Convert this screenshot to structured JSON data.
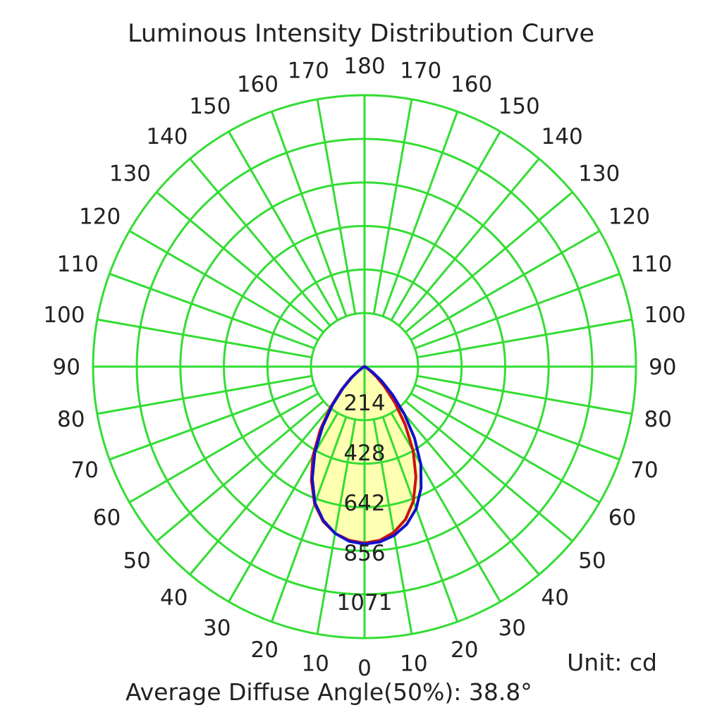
{
  "header": {
    "title": "Luminous Intensity Distribution Curve"
  },
  "footer": {
    "unit": "Unit: cd",
    "beam_angle": "Average Diffuse Angle(50%): 38.8°"
  },
  "colors": {
    "grid": "#33dd33",
    "series_c0": "#cc1111",
    "series_c90": "#1111cc",
    "fill": "#ffffa8"
  },
  "chart_data": {
    "type": "polar",
    "title": "Luminous Intensity Distribution Curve",
    "unit": "cd",
    "r_max": 1071,
    "radial_ticks": [
      "214",
      "428",
      "642",
      "856",
      "1071"
    ],
    "radial_values": [
      214,
      428,
      642,
      856,
      1071
    ],
    "angle_ticks_left": [
      "0",
      "10",
      "20",
      "30",
      "40",
      "50",
      "60",
      "70",
      "80",
      "90",
      "100",
      "110",
      "120",
      "130",
      "140",
      "150",
      "160",
      "170",
      "180"
    ],
    "angle_ticks_right": [
      "10",
      "20",
      "30",
      "40",
      "50",
      "60",
      "70",
      "80",
      "90",
      "100",
      "110",
      "120",
      "130",
      "140",
      "150",
      "160",
      "170"
    ],
    "angles_deg": [
      0,
      5,
      10,
      15,
      20,
      25,
      30,
      35,
      40,
      45,
      50,
      55,
      60,
      70,
      80,
      90
    ],
    "series": [
      {
        "color": "#cc1111",
        "values_left": [
          870,
          860,
          835,
          790,
          720,
          620,
          510,
          380,
          260,
          160,
          90,
          40,
          15,
          5,
          1,
          0
        ],
        "values_right": [
          870,
          860,
          830,
          780,
          705,
          600,
          480,
          350,
          235,
          140,
          75,
          30,
          10,
          3,
          1,
          0
        ]
      },
      {
        "color": "#1111cc",
        "values_left": [
          875,
          865,
          835,
          785,
          715,
          610,
          490,
          360,
          245,
          150,
          80,
          35,
          12,
          4,
          1,
          0
        ],
        "values_right": [
          875,
          868,
          845,
          805,
          745,
          660,
          555,
          430,
          305,
          195,
          110,
          50,
          18,
          5,
          1,
          0
        ]
      }
    ],
    "beam_angle_deg": 38.8,
    "grid": true,
    "legend": "none"
  }
}
